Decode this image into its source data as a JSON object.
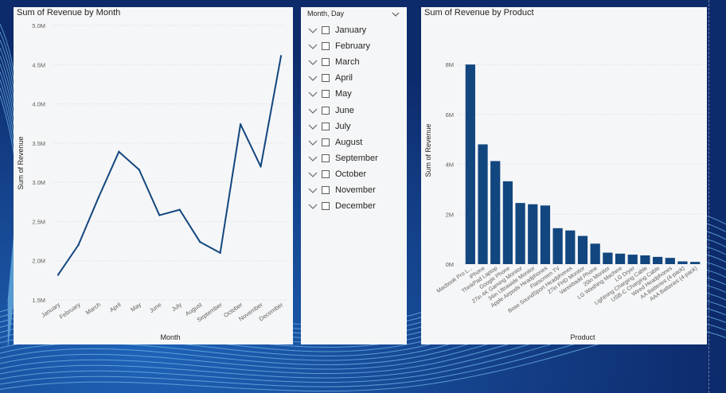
{
  "line_chart": {
    "title": "Sum of Revenue by Month",
    "chart_data": {
      "type": "line",
      "x": [
        "January",
        "February",
        "March",
        "April",
        "May",
        "June",
        "July",
        "August",
        "September",
        "October",
        "November",
        "December"
      ],
      "series": [
        {
          "values": [
            1.82,
            2.2,
            2.81,
            3.39,
            3.16,
            2.58,
            2.65,
            2.24,
            2.1,
            3.74,
            3.2,
            4.61
          ]
        }
      ],
      "xlabel": "Month",
      "ylabel": "Sum of Revenue",
      "ylim": [
        1.5,
        5.0
      ],
      "yticks": [
        "1.5M",
        "2.0M",
        "2.5M",
        "3.0M",
        "3.5M",
        "4.0M",
        "4.5M",
        "5.0M"
      ],
      "grid": true,
      "color": "#12467f"
    }
  },
  "slicer": {
    "header": "Month, Day",
    "items": [
      "January",
      "February",
      "March",
      "April",
      "May",
      "June",
      "July",
      "August",
      "September",
      "October",
      "November",
      "December"
    ]
  },
  "bar_chart": {
    "title": "Sum of Revenue by Product",
    "chart_data": {
      "type": "bar",
      "categories": [
        "Macbook Pro L...",
        "iPhone",
        "ThinkPad Laptop",
        "Google Phone",
        "27in 4K Gaming Monitor",
        "34in Ultrawide Monitor",
        "Apple Airpods Headphones",
        "Flatscreen TV",
        "Bose SoundSport Headphones",
        "27in FHD Monitor",
        "Vareebadd Phone",
        "20in Monitor",
        "LG Washing Machine",
        "LG Dryer",
        "Lightning Charging Cable",
        "USB-C Charging Cable",
        "Wired Headphones",
        "AA Batteries (4-pack)",
        "AAA Batteries (4-pack)"
      ],
      "values": [
        8.0,
        4.8,
        4.13,
        3.32,
        2.45,
        2.4,
        2.35,
        1.44,
        1.35,
        1.13,
        0.82,
        0.46,
        0.42,
        0.38,
        0.35,
        0.29,
        0.25,
        0.11,
        0.09
      ],
      "xlabel": "Product",
      "ylabel": "Sum of Revenue",
      "ylim": [
        0,
        8.8
      ],
      "yticks": [
        "0M",
        "2M",
        "4M",
        "6M",
        "8M"
      ],
      "grid": true,
      "color": "#12467f"
    }
  }
}
